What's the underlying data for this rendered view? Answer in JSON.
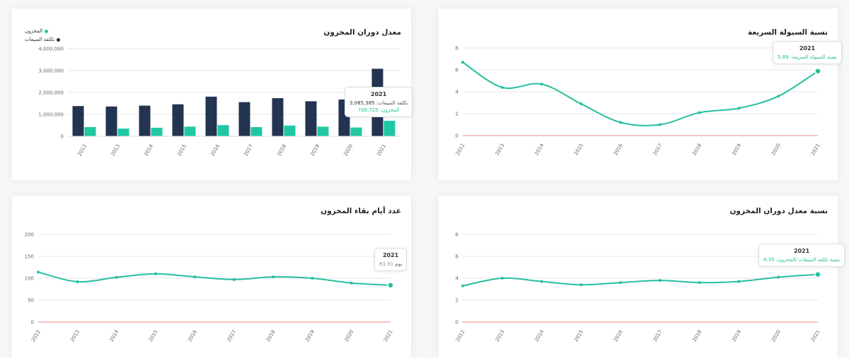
{
  "colors": {
    "navy": "#22344f",
    "teal": "#1fc8a2",
    "line": "#25bfa0",
    "zero": "#e8868a",
    "grid": "#e4e6e9"
  },
  "chart_data": [
    {
      "id": "turnover",
      "type": "bar",
      "title": "معدل دوران المخزون",
      "categories": [
        "2012",
        "2013",
        "2014",
        "2015",
        "2016",
        "2017",
        "2018",
        "2019",
        "2020",
        "2021"
      ],
      "series": [
        {
          "name": "تكلفة المبيعات",
          "color": "#22344f",
          "values": [
            1380000,
            1360000,
            1400000,
            1460000,
            1810000,
            1560000,
            1740000,
            1600000,
            1680000,
            3085385
          ]
        },
        {
          "name": "المخزون",
          "color": "#1fc8a2",
          "values": [
            420000,
            350000,
            390000,
            440000,
            510000,
            420000,
            490000,
            440000,
            400000,
            708725
          ]
        }
      ],
      "yticks": [
        "0",
        "1,000,000",
        "2,000,000",
        "3,000,000",
        "4,000,000"
      ],
      "ylim": [
        0,
        4000000
      ],
      "legend_position": "top-left",
      "tooltip": {
        "year": "2021",
        "line1_label": "تكلفة المبيعات:",
        "line1_value": "3,085,385",
        "line2_label": "المخزون:",
        "line2_value": "708,725"
      }
    },
    {
      "id": "quick",
      "type": "line",
      "title": "نسبة السيولة السريعة",
      "x": [
        "2012",
        "2013",
        "2014",
        "2015",
        "2016",
        "2017",
        "2018",
        "2019",
        "2020",
        "2021"
      ],
      "values": [
        6.7,
        4.4,
        4.7,
        2.9,
        1.2,
        1.0,
        2.1,
        2.5,
        3.6,
        5.89
      ],
      "yticks": [
        "0",
        "2",
        "4",
        "6",
        "8"
      ],
      "ylim": [
        0,
        8
      ],
      "tooltip": {
        "year": "2021",
        "label": "نسبة السيولة السريعة:",
        "value": "5.89"
      }
    },
    {
      "id": "days",
      "type": "line",
      "title": "عدد أيام بقاء المخزون",
      "x": [
        "2012",
        "2013",
        "2014",
        "2015",
        "2016",
        "2017",
        "2018",
        "2019",
        "2020",
        "2021"
      ],
      "values": [
        114,
        92,
        102,
        110,
        103,
        97,
        103,
        100,
        89,
        83.91
      ],
      "yticks": [
        "0",
        "50",
        "100",
        "150",
        "200"
      ],
      "ylim": [
        0,
        200
      ],
      "tooltip": {
        "year": "2021",
        "label": "يوم",
        "value": "83.91"
      }
    },
    {
      "id": "ratio",
      "type": "line",
      "title": "نسبة معدل دوران المخزون",
      "x": [
        "2012",
        "2013",
        "2014",
        "2015",
        "2016",
        "2017",
        "2018",
        "2019",
        "2020",
        "2021"
      ],
      "values": [
        3.3,
        4.0,
        3.7,
        3.4,
        3.6,
        3.8,
        3.6,
        3.7,
        4.1,
        4.35
      ],
      "yticks": [
        "0",
        "2",
        "4",
        "6",
        "8"
      ],
      "ylim": [
        0,
        8
      ],
      "tooltip": {
        "year": "2021",
        "label": "نسبة تكلفة المبيعات /المخزون:",
        "value": "4.35"
      }
    }
  ]
}
